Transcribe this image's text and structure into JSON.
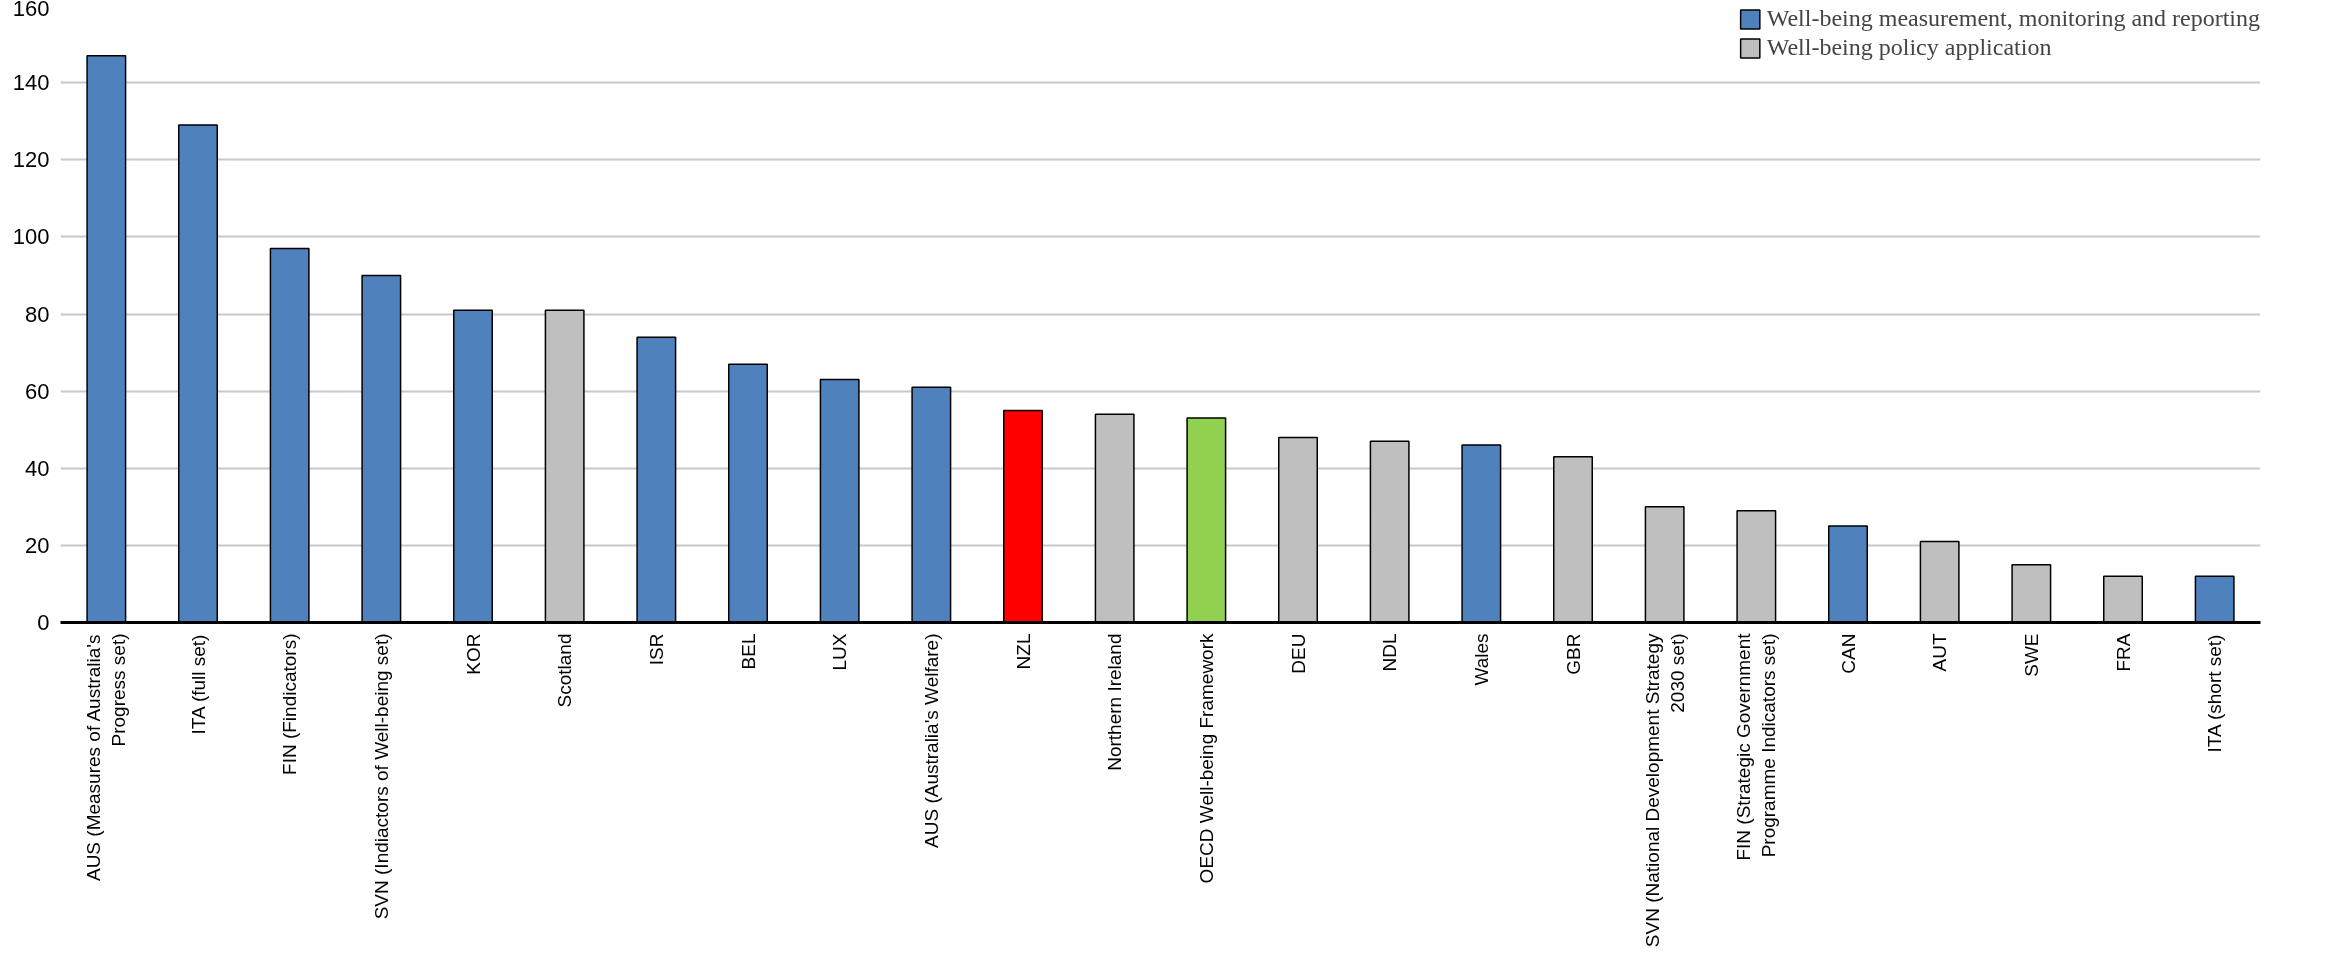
{
  "chart_data": {
    "type": "bar",
    "categories": [
      "AUS (Measures of Australia's Progress set)",
      "ITA (full set)",
      "FIN (Findicators)",
      "SVN (Indiactors of Well-being set)",
      "KOR",
      "Scotland",
      "ISR",
      "BEL",
      "LUX",
      "AUS (Australia's Welfare)",
      "NZL",
      "Northern Ireland",
      "OECD Well-being Framework",
      "DEU",
      "NDL",
      "Wales",
      "GBR",
      "SVN (National Development Strategy 2030 set)",
      "FIN (Strategic Government Programme Indicators set)",
      "CAN",
      "AUT",
      "SWE",
      "FRA",
      "ITA (short set)"
    ],
    "series": [
      {
        "name": "Well-being measurement, monitoring and reporting",
        "color": "#4f81bd",
        "values": [
          147,
          129,
          97,
          90,
          81,
          null,
          74,
          67,
          63,
          61,
          null,
          null,
          null,
          null,
          null,
          46,
          null,
          null,
          null,
          25,
          null,
          null,
          null,
          12
        ]
      },
      {
        "name": "Well-being policy application",
        "color": "#bfbfbf",
        "values": [
          null,
          null,
          null,
          null,
          null,
          81,
          null,
          null,
          null,
          null,
          null,
          54,
          null,
          48,
          47,
          null,
          43,
          30,
          29,
          null,
          21,
          15,
          12,
          null
        ]
      },
      {
        "colors": [
          null,
          null,
          null,
          null,
          null,
          null,
          null,
          null,
          null,
          null,
          "#ff0000",
          null,
          "#92d050",
          null,
          null,
          null,
          null,
          null,
          null,
          null,
          null,
          null,
          null,
          null
        ],
        "values": [
          null,
          null,
          null,
          null,
          null,
          null,
          null,
          null,
          null,
          null,
          55,
          null,
          53,
          null,
          null,
          null,
          null,
          null,
          null,
          null,
          null,
          null,
          null,
          null
        ]
      }
    ],
    "ylim": [
      0,
      160
    ],
    "yticks": [
      0,
      20,
      40,
      60,
      80,
      100,
      120,
      140,
      160
    ],
    "grid": "y",
    "legend": "top right"
  }
}
